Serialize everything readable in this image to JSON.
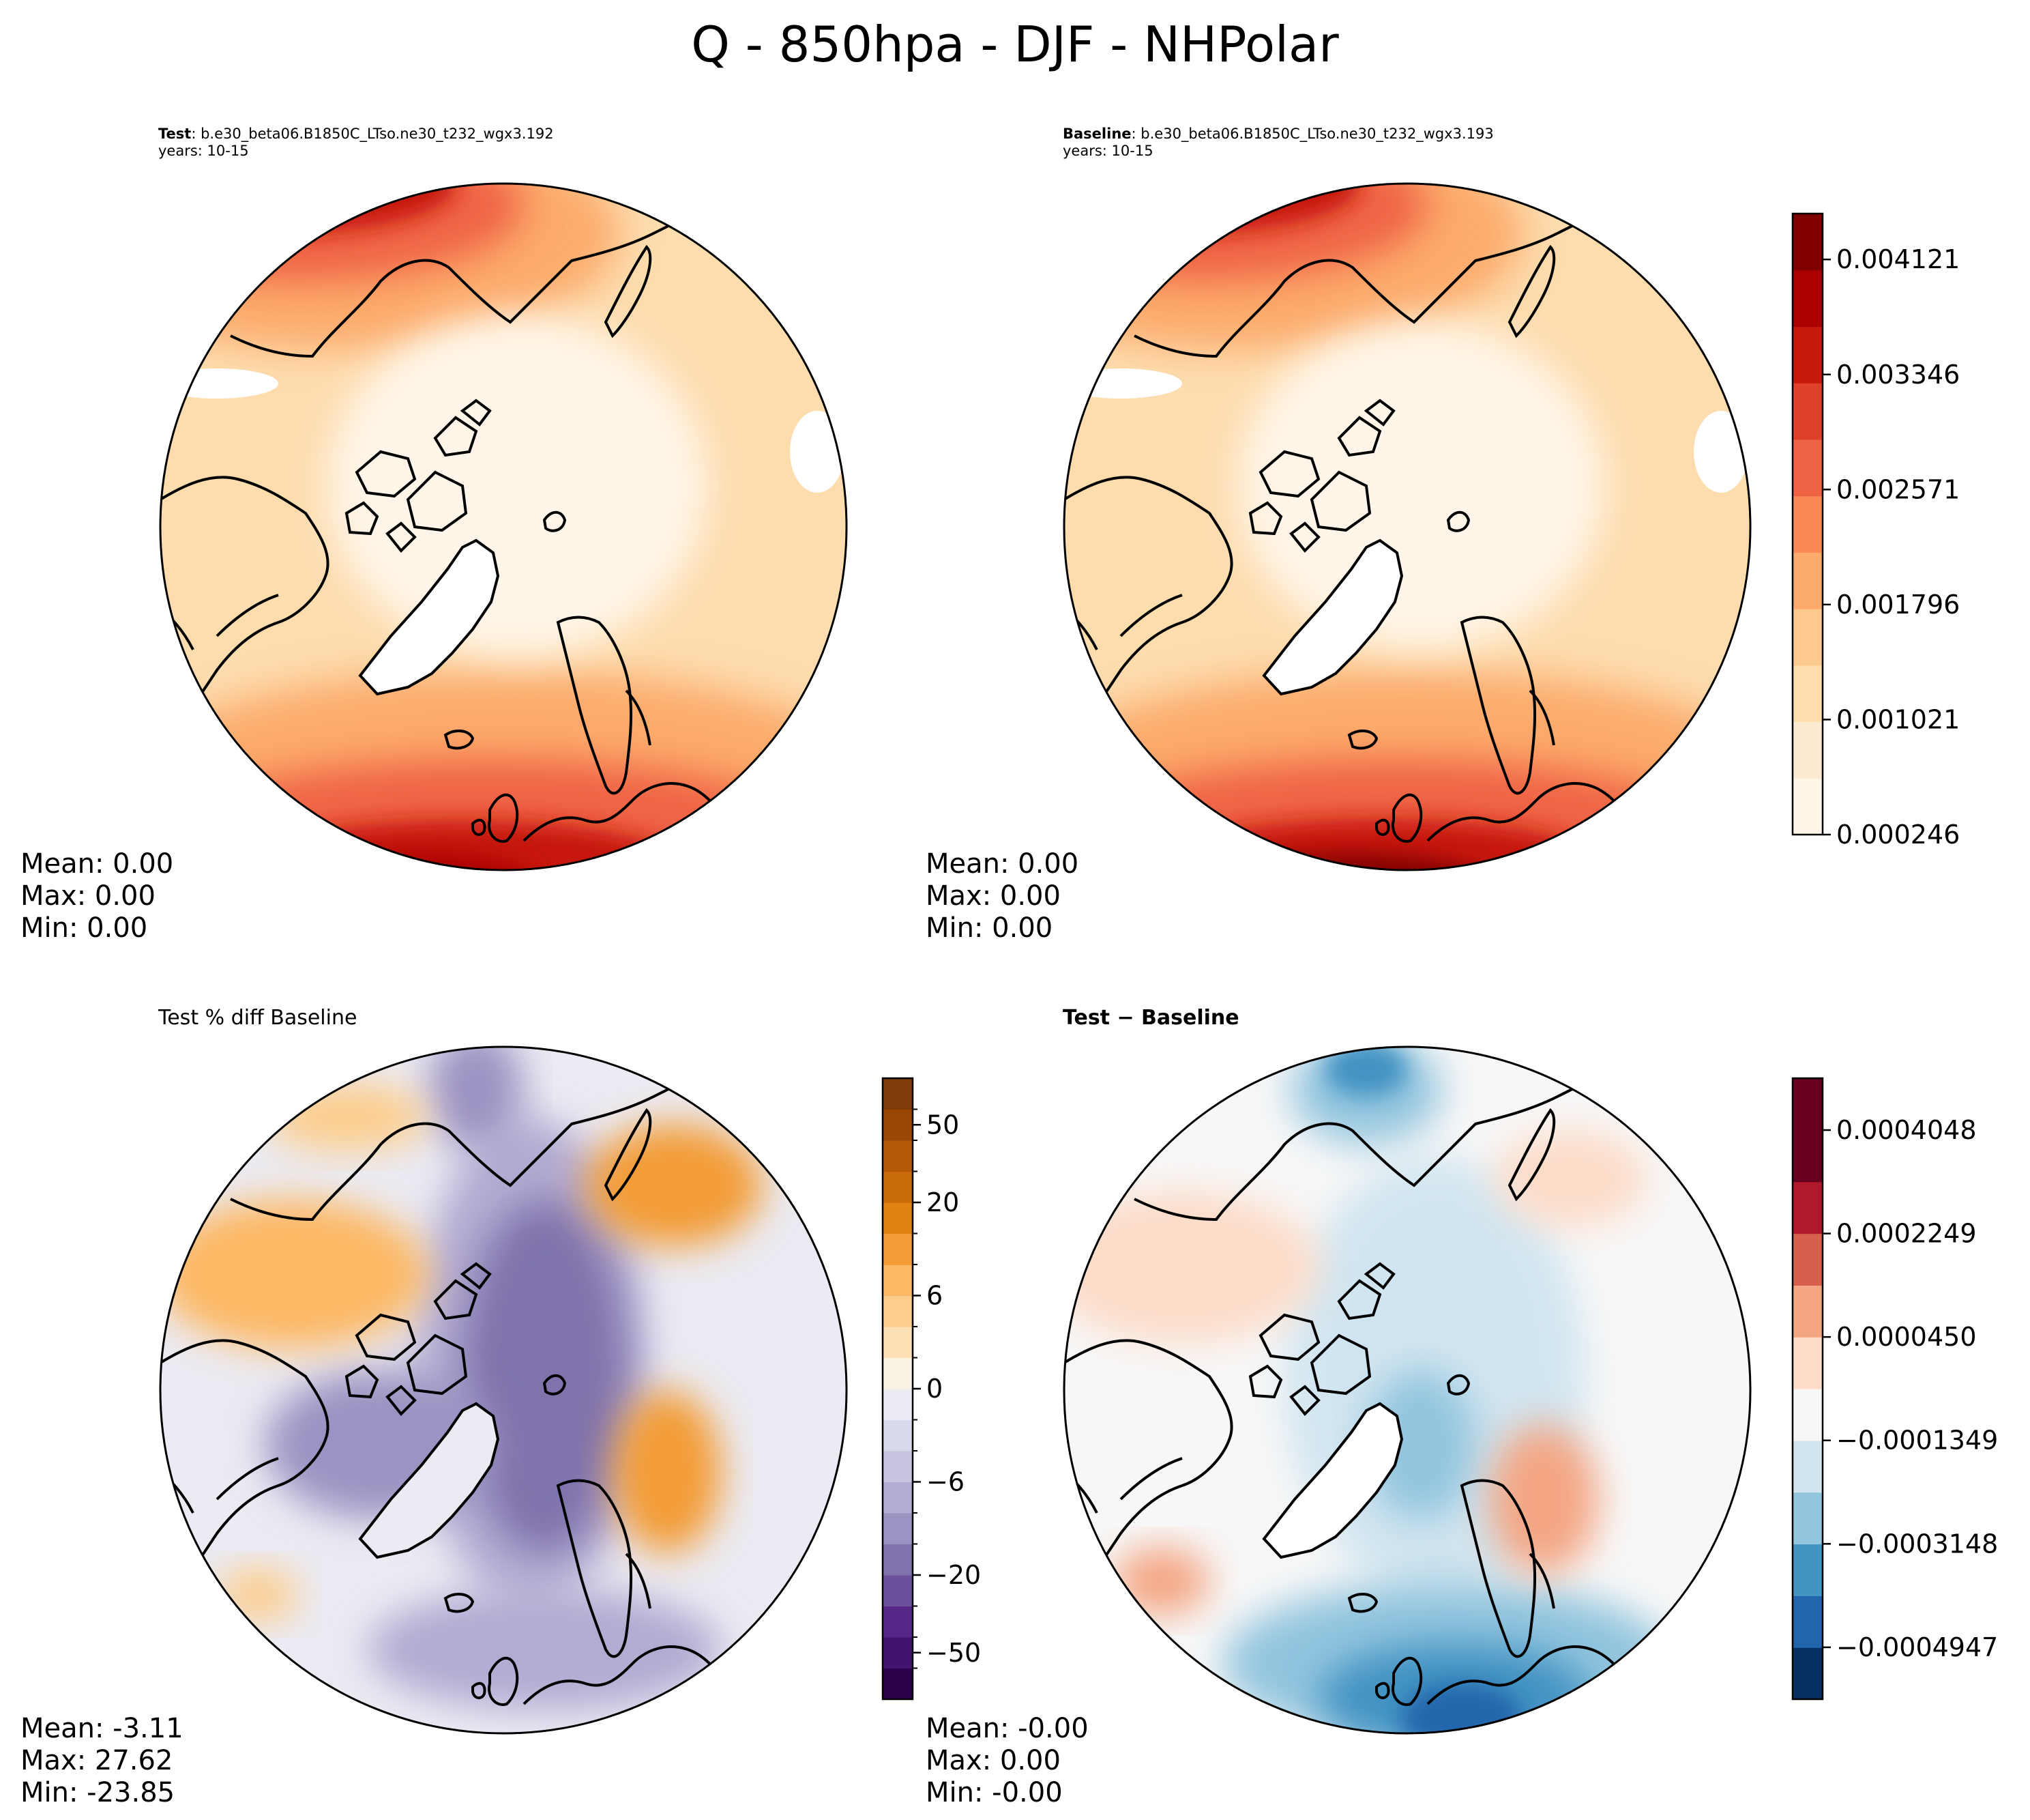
{
  "chart_data": {
    "type": "heatmap",
    "title": "Q - 850hpa - DJF - NHPolar",
    "panels": [
      {
        "id": "test",
        "label": "Test",
        "case": "b.e30_beta06.B1850C_LTso.ne30_t232_wgx3.192",
        "years": "years: 10-15",
        "colormap": "OrRd",
        "stats": {
          "mean_label": "Mean:  0.00",
          "max_label": "Max:  0.00",
          "min_label": "Min:  0.00"
        }
      },
      {
        "id": "baseline",
        "label": "Baseline",
        "case": "b.e30_beta06.B1850C_LTso.ne30_t232_wgx3.193",
        "years": "years: 10-15",
        "colormap": "OrRd",
        "stats": {
          "mean_label": "Mean:  0.00",
          "max_label": "Max:  0.00",
          "min_label": "Min:  0.00"
        }
      },
      {
        "id": "pctdiff",
        "title": "Test % diff Baseline",
        "colormap": "PuOr_r",
        "stats": {
          "mean_label": "Mean: -3.11",
          "max_label": "Max: 27.62",
          "min_label": "Min: -23.85"
        }
      },
      {
        "id": "diff",
        "title": "Test − Baseline",
        "colormap": "RdBu_r",
        "stats": {
          "mean_label": "Mean: -0.00",
          "max_label": "Max:  0.00",
          "min_label": "Min: -0.00"
        }
      }
    ],
    "colorbars": [
      {
        "id": "cb_main",
        "range": [
          0.000246,
          0.00443
        ],
        "levels": 11,
        "tick_values": [
          0.000246,
          0.001021,
          0.001796,
          0.002571,
          0.003346,
          0.004121
        ],
        "tick_labels": [
          "0.000246",
          "0.001021",
          "0.001796",
          "0.002571",
          "0.003346",
          "0.004121"
        ],
        "colors": [
          "#fff5e8",
          "#feead0",
          "#fddcae",
          "#fdc98e",
          "#fcab6c",
          "#f98a55",
          "#ef6345",
          "#df4029",
          "#c6190e",
          "#aa0000",
          "#800000"
        ]
      },
      {
        "id": "cb_pct",
        "range": [
          -100,
          100
        ],
        "levels": 20,
        "tick_values": [
          -50,
          -20,
          -6,
          0,
          6,
          20,
          50
        ],
        "tick_labels": [
          "−50",
          "−20",
          "−6",
          "0",
          "6",
          "20",
          "50"
        ],
        "colors": [
          "#2d004b",
          "#42146f",
          "#542788",
          "#6a519c",
          "#8073ac",
          "#9c93c2",
          "#b2abd2",
          "#c8c4e0",
          "#d8daeb",
          "#ebebf3",
          "#f9f1e3",
          "#fee0b6",
          "#fdcd8c",
          "#fdb863",
          "#f39b34",
          "#e08214",
          "#c96a0b",
          "#b35806",
          "#9a4706",
          "#7f3b08"
        ]
      },
      {
        "id": "cb_diff",
        "range": [
          -0.000585,
          0.000495
        ],
        "levels": 12,
        "tick_values": [
          -0.0004947,
          -0.0003148,
          -0.0001349,
          4.5e-05,
          0.0002249,
          0.0004048
        ],
        "tick_labels": [
          "−0.0004947",
          "−0.0003148",
          "−0.0001349",
          "0.0000450",
          "0.0002249",
          "0.0004048"
        ],
        "colors": [
          "#053061",
          "#2166ac",
          "#4393c3",
          "#92c5de",
          "#d1e5f0",
          "#f7f7f7",
          "#fddbc7",
          "#f4a582",
          "#d6604d",
          "#b2182b",
          "#67001f",
          "#67001f"
        ]
      }
    ],
    "colors": {
      "coast": "#000000",
      "land_mask": "#ffffff",
      "test_north": "#c52a10",
      "test_south": "#b60808",
      "pct_purple": "#8a80b8",
      "pct_orange": "#efa43f",
      "diff_blue": "#4a8ec4",
      "diff_red": "#f2a48a"
    }
  }
}
